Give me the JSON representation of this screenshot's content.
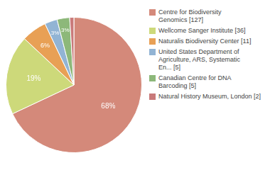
{
  "chart_data": {
    "type": "pie",
    "categories": [
      "Centre for Biodiversity\nGenomics [127]",
      "Wellcome Sanger Institute [36]",
      "Naturalis Biodiversity Center [11]",
      "United States Department of\nAgriculture, ARS, Systematic\nEn... [5]",
      "Canadian Centre for DNA\nBarcoding [5]",
      "Natural History Museum, London [2]"
    ],
    "values": [
      68,
      19,
      6,
      3,
      3,
      1
    ],
    "value_labels": [
      "68%",
      "19%",
      "6%",
      "3%",
      "3%",
      null
    ],
    "data_labels": true,
    "colors": [
      "#d4897a",
      "#cdd97a",
      "#e8a055",
      "#92b4d4",
      "#8db87a",
      "#c97a7a"
    ],
    "legend": "right"
  }
}
